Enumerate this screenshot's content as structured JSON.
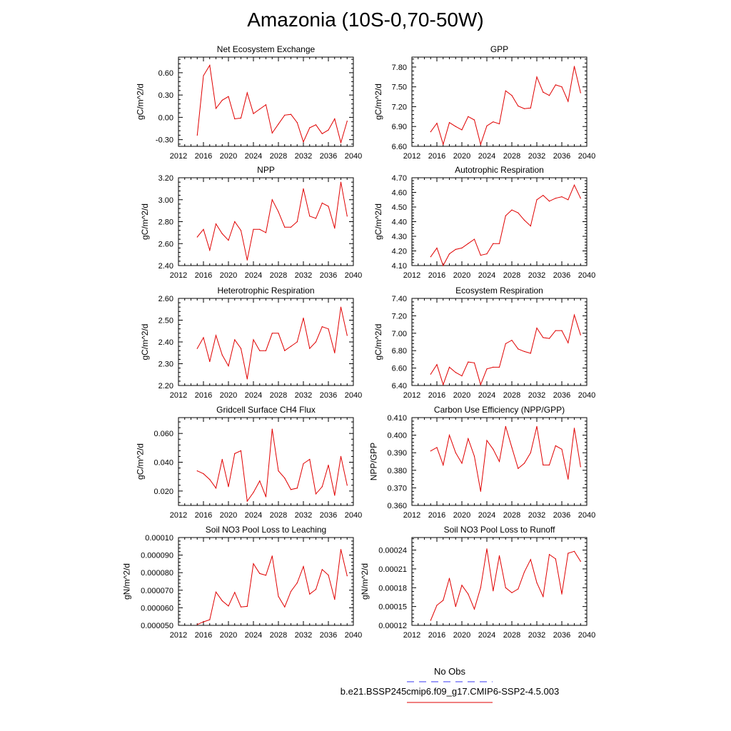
{
  "title": "Amazonia (10S-0,70-50W)",
  "legend": {
    "obs_label": "No Obs",
    "model_label": "b.e21.BSSP245cmip6.f09_g17.CMIP6-SSP2-4.5.003",
    "obs_color": "#3a3af0",
    "model_color": "#e00000"
  },
  "chart_data": [
    {
      "type": "line",
      "title": "Net Ecosystem Exchange",
      "ylabel": "gC/m^2/d",
      "xlim": [
        2012,
        2040
      ],
      "xticks": [
        2012,
        2016,
        2020,
        2024,
        2028,
        2032,
        2036,
        2040
      ],
      "ylim": [
        -0.39,
        0.81
      ],
      "yticks": [
        "0.60",
        "0.30",
        "0.00",
        "-0.30"
      ],
      "x": [
        2015,
        2016,
        2017,
        2018,
        2019,
        2020,
        2021,
        2022,
        2023,
        2024,
        2025,
        2026,
        2027,
        2028,
        2029,
        2030,
        2031,
        2032,
        2033,
        2034,
        2035,
        2036,
        2037,
        2038,
        2039
      ],
      "series": [
        {
          "values": [
            -0.24,
            0.56,
            0.7,
            0.12,
            0.23,
            0.28,
            -0.02,
            -0.01,
            0.33,
            0.05,
            0.11,
            0.17,
            -0.21,
            -0.09,
            0.03,
            0.04,
            -0.07,
            -0.33,
            -0.14,
            -0.1,
            -0.22,
            -0.17,
            -0.02,
            -0.34,
            -0.05
          ]
        }
      ]
    },
    {
      "type": "line",
      "title": "GPP",
      "ylabel": "gC/m^2/d",
      "xlim": [
        2012,
        2040
      ],
      "xticks": [
        2012,
        2016,
        2020,
        2024,
        2028,
        2032,
        2036,
        2040
      ],
      "ylim": [
        6.6,
        7.95
      ],
      "yticks": [
        "7.80",
        "7.50",
        "7.20",
        "6.90",
        "6.60"
      ],
      "x": [
        2015,
        2016,
        2017,
        2018,
        2019,
        2020,
        2021,
        2022,
        2023,
        2024,
        2025,
        2026,
        2027,
        2028,
        2029,
        2030,
        2031,
        2032,
        2033,
        2034,
        2035,
        2036,
        2037,
        2038,
        2039
      ],
      "series": [
        {
          "values": [
            6.82,
            6.95,
            6.63,
            6.96,
            6.9,
            6.85,
            7.05,
            7.0,
            6.63,
            6.91,
            6.97,
            6.94,
            7.44,
            7.37,
            7.21,
            7.17,
            7.18,
            7.65,
            7.42,
            7.37,
            7.53,
            7.5,
            7.28,
            7.81,
            7.41
          ]
        }
      ]
    },
    {
      "type": "line",
      "title": "NPP",
      "ylabel": "gC/m^2/d",
      "xlim": [
        2012,
        2040
      ],
      "xticks": [
        2012,
        2016,
        2020,
        2024,
        2028,
        2032,
        2036,
        2040
      ],
      "ylim": [
        2.4,
        3.2
      ],
      "yticks": [
        "3.20",
        "3.00",
        "2.80",
        "2.60",
        "2.40"
      ],
      "x": [
        2015,
        2016,
        2017,
        2018,
        2019,
        2020,
        2021,
        2022,
        2023,
        2024,
        2025,
        2026,
        2027,
        2028,
        2029,
        2030,
        2031,
        2032,
        2033,
        2034,
        2035,
        2036,
        2037,
        2038,
        2039
      ],
      "series": [
        {
          "values": [
            2.66,
            2.73,
            2.54,
            2.78,
            2.69,
            2.63,
            2.8,
            2.72,
            2.45,
            2.73,
            2.73,
            2.7,
            3.0,
            2.89,
            2.75,
            2.75,
            2.8,
            3.1,
            2.85,
            2.83,
            2.97,
            2.94,
            2.74,
            3.16,
            2.85
          ]
        }
      ]
    },
    {
      "type": "line",
      "title": "Autotrophic Respiration",
      "ylabel": "gC/m^2/d",
      "xlim": [
        2012,
        2040
      ],
      "xticks": [
        2012,
        2016,
        2020,
        2024,
        2028,
        2032,
        2036,
        2040
      ],
      "ylim": [
        4.1,
        4.7
      ],
      "yticks": [
        "4.70",
        "4.60",
        "4.50",
        "4.40",
        "4.30",
        "4.20",
        "4.10"
      ],
      "x": [
        2015,
        2016,
        2017,
        2018,
        2019,
        2020,
        2021,
        2022,
        2023,
        2024,
        2025,
        2026,
        2027,
        2028,
        2029,
        2030,
        2031,
        2032,
        2033,
        2034,
        2035,
        2036,
        2037,
        2038,
        2039
      ],
      "series": [
        {
          "values": [
            4.16,
            4.22,
            4.1,
            4.18,
            4.21,
            4.22,
            4.25,
            4.28,
            4.17,
            4.18,
            4.25,
            4.25,
            4.44,
            4.48,
            4.46,
            4.41,
            4.37,
            4.55,
            4.58,
            4.54,
            4.56,
            4.57,
            4.55,
            4.65,
            4.56
          ]
        }
      ]
    },
    {
      "type": "line",
      "title": "Heterotrophic Respiration",
      "ylabel": "gC/m^2/d",
      "xlim": [
        2012,
        2040
      ],
      "xticks": [
        2012,
        2016,
        2020,
        2024,
        2028,
        2032,
        2036,
        2040
      ],
      "ylim": [
        2.2,
        2.6
      ],
      "yticks": [
        "2.60",
        "2.50",
        "2.40",
        "2.30",
        "2.20"
      ],
      "x": [
        2015,
        2016,
        2017,
        2018,
        2019,
        2020,
        2021,
        2022,
        2023,
        2024,
        2025,
        2026,
        2027,
        2028,
        2029,
        2030,
        2031,
        2032,
        2033,
        2034,
        2035,
        2036,
        2037,
        2038,
        2039
      ],
      "series": [
        {
          "values": [
            2.37,
            2.42,
            2.31,
            2.43,
            2.34,
            2.29,
            2.41,
            2.37,
            2.23,
            2.41,
            2.36,
            2.36,
            2.44,
            2.44,
            2.36,
            2.38,
            2.4,
            2.51,
            2.37,
            2.4,
            2.47,
            2.46,
            2.35,
            2.56,
            2.43
          ]
        }
      ]
    },
    {
      "type": "line",
      "title": "Ecosystem Respiration",
      "ylabel": "gC/m^2/d",
      "xlim": [
        2012,
        2040
      ],
      "xticks": [
        2012,
        2016,
        2020,
        2024,
        2028,
        2032,
        2036,
        2040
      ],
      "ylim": [
        6.4,
        7.4
      ],
      "yticks": [
        "7.40",
        "7.20",
        "7.00",
        "6.80",
        "6.60",
        "6.40"
      ],
      "x": [
        2015,
        2016,
        2017,
        2018,
        2019,
        2020,
        2021,
        2022,
        2023,
        2024,
        2025,
        2026,
        2027,
        2028,
        2029,
        2030,
        2031,
        2032,
        2033,
        2034,
        2035,
        2036,
        2037,
        2038,
        2039
      ],
      "series": [
        {
          "values": [
            6.53,
            6.64,
            6.41,
            6.61,
            6.55,
            6.51,
            6.67,
            6.66,
            6.41,
            6.59,
            6.61,
            6.61,
            6.88,
            6.92,
            6.82,
            6.79,
            6.77,
            7.06,
            6.95,
            6.94,
            7.03,
            7.03,
            6.89,
            7.21,
            6.98
          ]
        }
      ]
    },
    {
      "type": "line",
      "title": "Gridcell Surface CH4 Flux",
      "ylabel": "gC/m^2/d",
      "xlim": [
        2012,
        2040
      ],
      "xticks": [
        2012,
        2016,
        2020,
        2024,
        2028,
        2032,
        2036,
        2040
      ],
      "ylim": [
        0.01,
        0.071
      ],
      "yticks": [
        "0.060",
        "0.040",
        "0.020"
      ],
      "x": [
        2015,
        2016,
        2017,
        2018,
        2019,
        2020,
        2021,
        2022,
        2023,
        2024,
        2025,
        2026,
        2027,
        2028,
        2029,
        2030,
        2031,
        2032,
        2033,
        2034,
        2035,
        2036,
        2037,
        2038,
        2039
      ],
      "series": [
        {
          "values": [
            0.034,
            0.032,
            0.028,
            0.022,
            0.042,
            0.023,
            0.046,
            0.048,
            0.013,
            0.019,
            0.027,
            0.016,
            0.063,
            0.034,
            0.029,
            0.021,
            0.022,
            0.039,
            0.042,
            0.018,
            0.023,
            0.038,
            0.017,
            0.044,
            0.024
          ]
        }
      ]
    },
    {
      "type": "line",
      "title": "Carbon Use Efficiency (NPP/GPP)",
      "ylabel": "NPP/GPP",
      "xlim": [
        2012,
        2040
      ],
      "xticks": [
        2012,
        2016,
        2020,
        2024,
        2028,
        2032,
        2036,
        2040
      ],
      "ylim": [
        0.36,
        0.41
      ],
      "yticks": [
        "0.410",
        "0.400",
        "0.390",
        "0.380",
        "0.370",
        "0.360"
      ],
      "x": [
        2015,
        2016,
        2017,
        2018,
        2019,
        2020,
        2021,
        2022,
        2023,
        2024,
        2025,
        2026,
        2027,
        2028,
        2029,
        2030,
        2031,
        2032,
        2033,
        2034,
        2035,
        2036,
        2037,
        2038,
        2039
      ],
      "series": [
        {
          "values": [
            0.391,
            0.393,
            0.383,
            0.4,
            0.39,
            0.384,
            0.398,
            0.388,
            0.368,
            0.397,
            0.392,
            0.385,
            0.405,
            0.393,
            0.381,
            0.384,
            0.39,
            0.405,
            0.383,
            0.383,
            0.394,
            0.392,
            0.375,
            0.404,
            0.382
          ]
        }
      ]
    },
    {
      "type": "line",
      "title": "Soil NO3 Pool Loss to Leaching",
      "ylabel": "gN/m^2/d",
      "xlim": [
        2012,
        2040
      ],
      "xticks": [
        2012,
        2016,
        2020,
        2024,
        2028,
        2032,
        2036,
        2040
      ],
      "ylim": [
        5e-05,
        0.0001
      ],
      "yticks": [
        "0.00010",
        "0.000090",
        "0.000080",
        "0.000070",
        "0.000060",
        "0.000050"
      ],
      "x": [
        2015,
        2016,
        2017,
        2018,
        2019,
        2020,
        2021,
        2022,
        2023,
        2024,
        2025,
        2026,
        2027,
        2028,
        2029,
        2030,
        2031,
        2032,
        2033,
        2034,
        2035,
        2036,
        2037,
        2038,
        2039
      ],
      "series": [
        {
          "values": [
            5.05e-05,
            5.2e-05,
            5.32e-05,
            6.9e-05,
            6.4e-05,
            6.1e-05,
            6.88e-05,
            6.05e-05,
            6.08e-05,
            8.51e-05,
            7.95e-05,
            7.85e-05,
            8.95e-05,
            6.65e-05,
            6.05e-05,
            6.93e-05,
            7.42e-05,
            8.35e-05,
            6.78e-05,
            7.05e-05,
            8.18e-05,
            7.86e-05,
            6.48e-05,
            9.32e-05,
            7.82e-05
          ]
        }
      ]
    },
    {
      "type": "line",
      "title": "Soil NO3 Pool Loss to Runoff",
      "ylabel": "gN/m^2/d",
      "xlim": [
        2012,
        2040
      ],
      "xticks": [
        2012,
        2016,
        2020,
        2024,
        2028,
        2032,
        2036,
        2040
      ],
      "ylim": [
        0.00012,
        0.00026
      ],
      "yticks": [
        "0.00024",
        "0.00021",
        "0.00018",
        "0.00015",
        "0.00012"
      ],
      "x": [
        2015,
        2016,
        2017,
        2018,
        2019,
        2020,
        2021,
        2022,
        2023,
        2024,
        2025,
        2026,
        2027,
        2028,
        2029,
        2030,
        2031,
        2032,
        2033,
        2034,
        2035,
        2036,
        2037,
        2038,
        2039
      ],
      "series": [
        {
          "values": [
            0.000128,
            0.000152,
            0.00016,
            0.000195,
            0.00015,
            0.000184,
            0.00017,
            0.000146,
            0.00018,
            0.000242,
            0.000175,
            0.000231,
            0.00018,
            0.000172,
            0.000178,
            0.000205,
            0.000225,
            0.000188,
            0.000166,
            0.000233,
            0.000226,
            0.00017,
            0.000235,
            0.000238,
            0.000222
          ]
        }
      ]
    }
  ]
}
